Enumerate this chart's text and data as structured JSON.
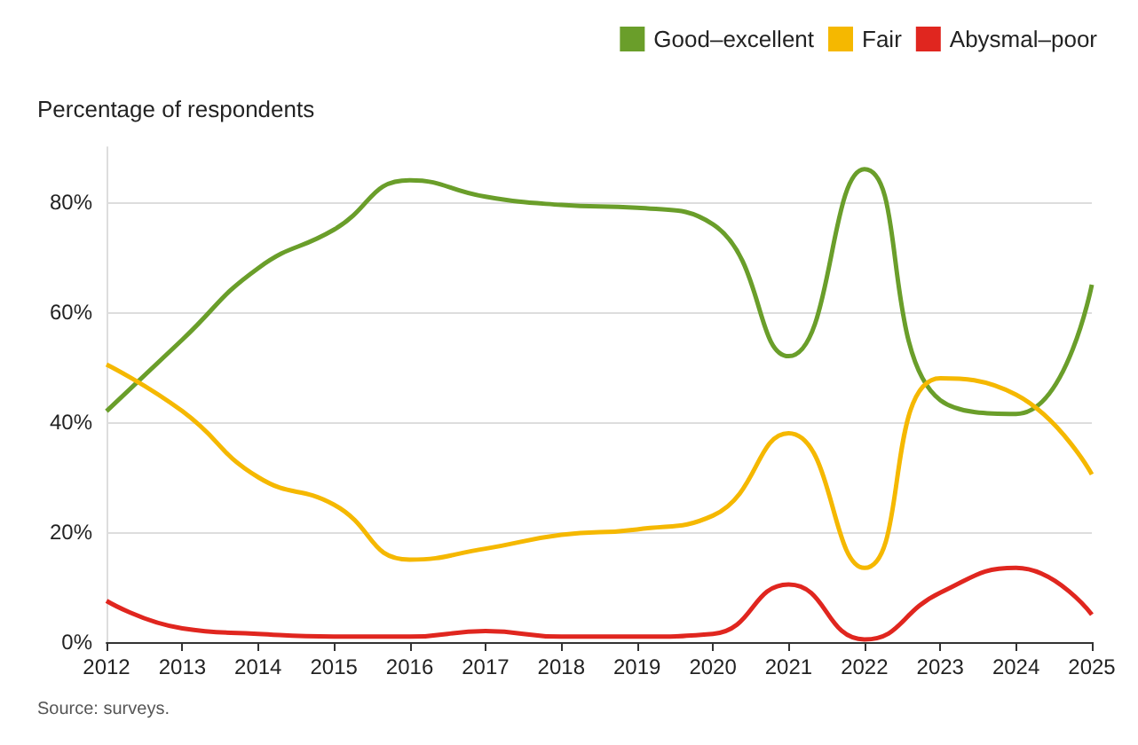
{
  "chart_data": {
    "type": "line",
    "ylabel": "Percentage of respondents",
    "x": [
      2012,
      2013,
      2014,
      2015,
      2016,
      2017,
      2018,
      2019,
      2020,
      2021,
      2022,
      2023,
      2024,
      2025
    ],
    "series": [
      {
        "name": "Good–excellent",
        "color": "#6a9e2a",
        "values": [
          42,
          55,
          68,
          75,
          84,
          81,
          79.5,
          79,
          76,
          52,
          86,
          44,
          41.5,
          65
        ]
      },
      {
        "name": "Fair",
        "color": "#f5b800",
        "values": [
          50.5,
          42,
          30,
          25,
          15,
          17,
          19.5,
          20.5,
          23,
          38,
          13.5,
          48,
          45,
          30.5
        ]
      },
      {
        "name": "Abysmal–poor",
        "color": "#e0261f",
        "values": [
          7.5,
          2.5,
          1.5,
          1,
          1,
          2,
          1,
          1,
          1.5,
          10.5,
          0.5,
          9,
          13.5,
          5
        ]
      }
    ],
    "xlim": [
      2012,
      2025
    ],
    "xticks": [
      2012,
      2013,
      2014,
      2015,
      2016,
      2017,
      2018,
      2019,
      2020,
      2021,
      2022,
      2023,
      2024,
      2025
    ],
    "yticks": [
      {
        "value": 0,
        "label": "0%"
      },
      {
        "value": 20,
        "label": "20%"
      },
      {
        "value": 40,
        "label": "40%"
      },
      {
        "value": 60,
        "label": "60%"
      },
      {
        "value": 80,
        "label": "80%"
      }
    ],
    "ylim": [
      0,
      90
    ],
    "grid": "y",
    "legend": "top right",
    "marker": "none",
    "line_style": "solid",
    "annotations": [
      "Source: surveys."
    ]
  }
}
